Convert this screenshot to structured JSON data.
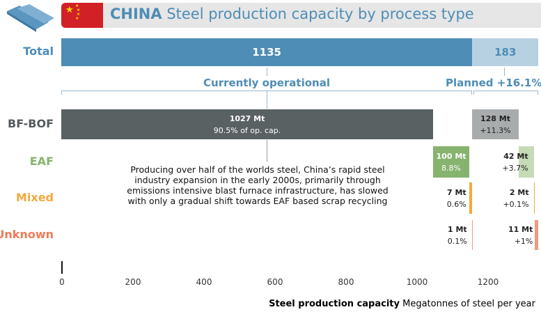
{
  "header": {
    "title_bold": "CHINA",
    "title_rest": " Steel production capacity by process type"
  },
  "colors": {
    "total": "#4e8db5",
    "planned_total": "#b7d1e3",
    "bf_bof": "#5a6163",
    "bf_bof_planned": "#a9acad",
    "eaf": "#86b36e",
    "eaf_planned": "#c7dab8",
    "mixed": "#f3a93c",
    "unknown": "#f09a7f"
  },
  "chart_data": {
    "type": "bar",
    "title": "CHINA Steel production capacity by process type",
    "xlabel_bold": "Steel production capacity",
    "xlabel": "Megatonnes of steel per year",
    "xlim": [
      0,
      1350
    ],
    "xticks": [
      0,
      200,
      400,
      600,
      800,
      1000,
      1200
    ],
    "total": {
      "label": "Total",
      "operational": 1135,
      "planned": 183,
      "operational_label": "1135",
      "planned_label": "183"
    },
    "groups": {
      "operational": "Currently operational",
      "planned": "Planned +16.1%"
    },
    "categories": [
      {
        "name": "BF-BOF",
        "operational": 1027,
        "planned": 128,
        "op_label": "1027 Mt",
        "op_pct": "90.5% of op. cap.",
        "pl_label": "128 Mt",
        "pl_pct": "+11.3%"
      },
      {
        "name": "EAF",
        "operational": 100,
        "planned": 42,
        "op_label": "100 Mt",
        "op_pct": "8.8%",
        "pl_label": "42 Mt",
        "pl_pct": "+3.7%"
      },
      {
        "name": "Mixed",
        "operational": 7,
        "planned": 2,
        "op_label": "7 Mt",
        "op_pct": "0.6%",
        "pl_label": "2 Mt",
        "pl_pct": "+0.1%"
      },
      {
        "name": "Unknown",
        "operational": 1,
        "planned": 11,
        "op_label": "1 Mt",
        "op_pct": "0.1%",
        "pl_label": "11 Mt",
        "pl_pct": "+1%"
      }
    ],
    "annotation": "Producing over half of the worlds steel, China’s rapid steel industry expansion in the early 2000s, primarily through emissions intensive blast furnace infrastructure, has slowed with only a gradual shift towards EAF based scrap recycling"
  }
}
